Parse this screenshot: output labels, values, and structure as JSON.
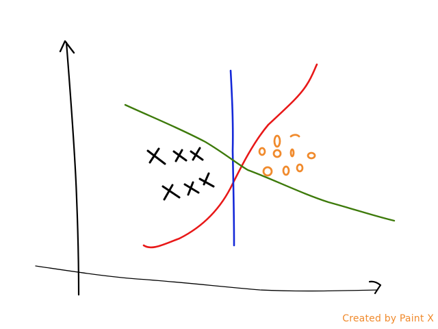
{
  "watermark": {
    "text": "Created by Paint X",
    "color": "#f08a2c"
  },
  "colors": {
    "axes": "#000000",
    "x_markers": "#000000",
    "o_markers": "#f08a2c",
    "red_curve": "#e81818",
    "blue_line": "#1428d8",
    "green_line": "#3d7a0a"
  },
  "markers": {
    "x_count": 6,
    "o_count": 8
  }
}
